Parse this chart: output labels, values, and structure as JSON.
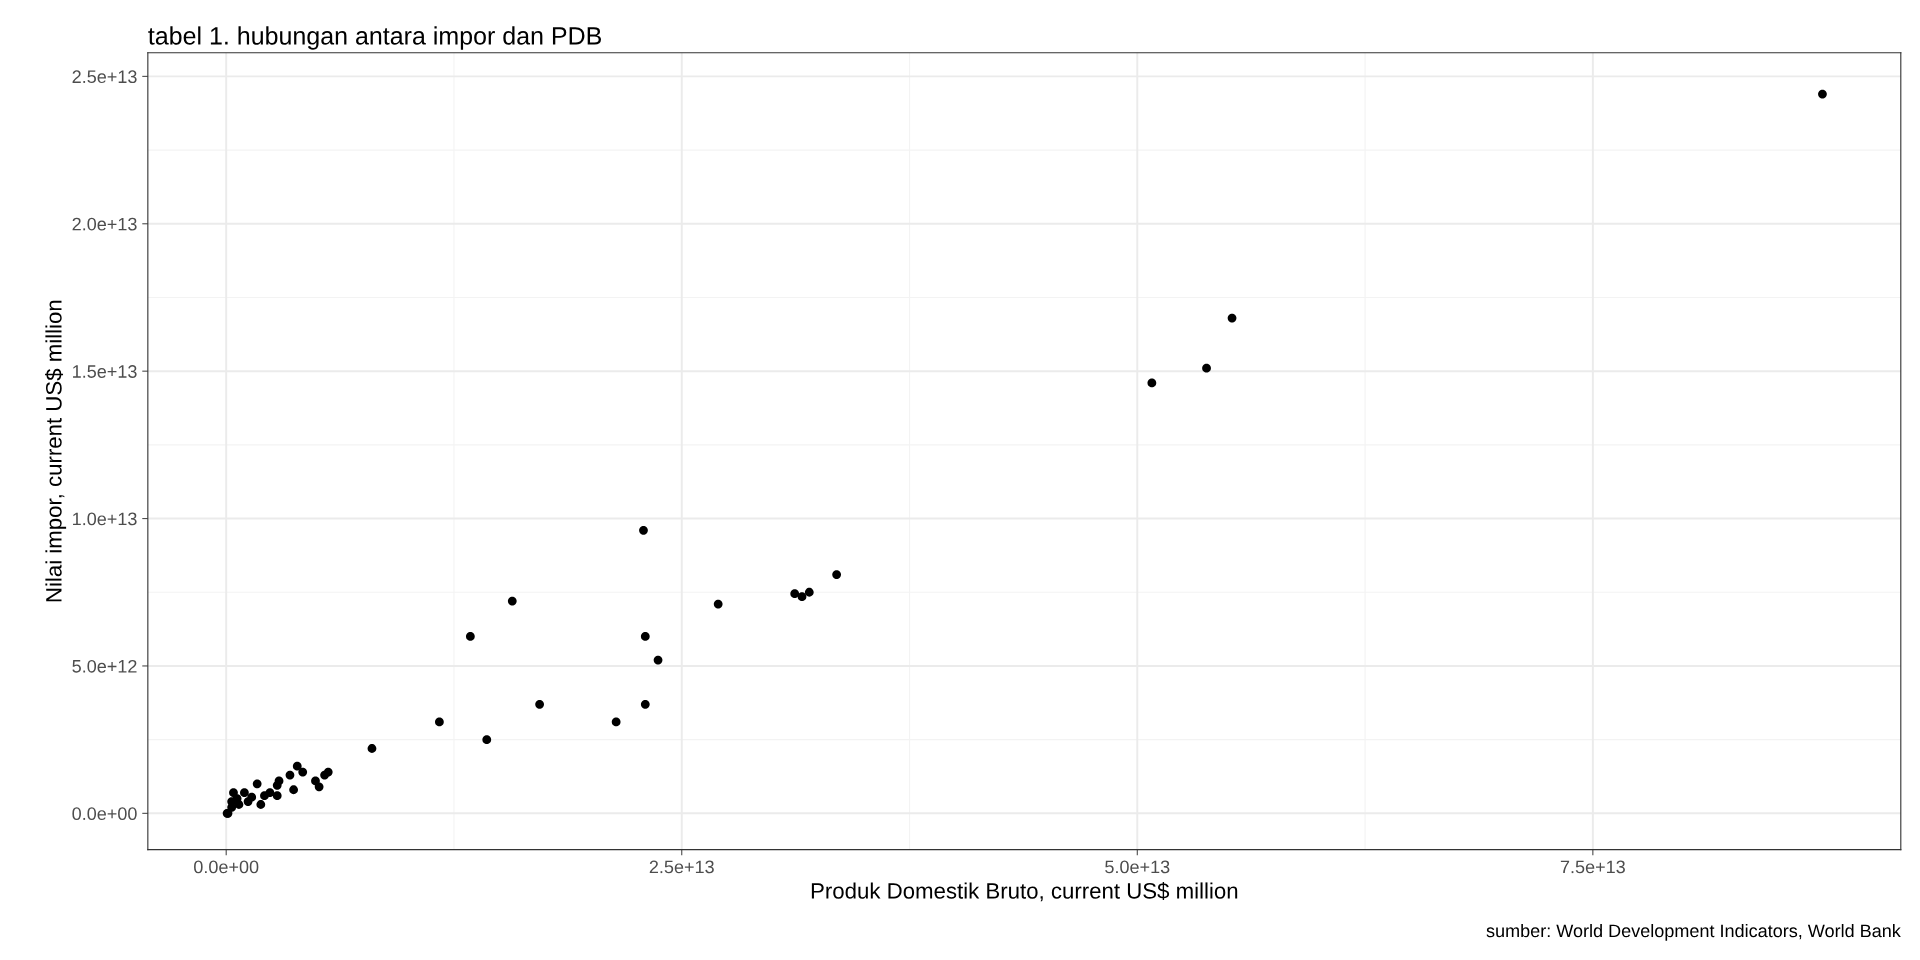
{
  "chart_data": {
    "type": "scatter",
    "title": "tabel 1. hubungan antara impor dan PDB",
    "xlabel": "Produk Domestik Bruto, current US$ million",
    "ylabel": "Nilai impor, current US$ million",
    "annotations": [
      "sumber: World Development Indicators, World Bank"
    ],
    "x": [
      87600000000000.0,
      55200000000000.0,
      53800000000000.0,
      50800000000000.0,
      33500000000000.0,
      31200000000000.0,
      31600000000000.0,
      32000000000000.0,
      27000000000000.0,
      22900000000000.0,
      23000000000000.0,
      23700000000000.0,
      23000000000000.0,
      21400000000000.0,
      17200000000000.0,
      15700000000000.0,
      13400000000000.0,
      14300000000000.0,
      11700000000000.0,
      8000000000000.0,
      5600000000000.0,
      5400000000000.0,
      4900000000000.0,
      5100000000000.0,
      3900000000000.0,
      4200000000000.0,
      3500000000000.0,
      3700000000000.0,
      2900000000000.0,
      2800000000000.0,
      2800000000000.0,
      1700000000000.0,
      2400000000000.0,
      1900000000000.0,
      400000000000.0,
      1000000000000.0,
      1400000000000.0,
      100000000000.0,
      300000000000.0,
      700000000000.0,
      1200000000000.0,
      2100000000000.0,
      300000000000.0,
      600000000000.0,
      50000000000.0
    ],
    "series": [
      {
        "color": "#000000",
        "values": [
          24400000000000.0,
          16800000000000.0,
          15100000000000.0,
          14600000000000.0,
          8100000000000.0,
          7450000000000.0,
          7350000000000.0,
          7500000000000.0,
          7100000000000.0,
          9600000000000.0,
          6000000000000.0,
          5200000000000.0,
          3700000000000.0,
          3100000000000.0,
          3700000000000.0,
          7200000000000.0,
          6000000000000.0,
          2500000000000.0,
          3100000000000.0,
          2200000000000.0,
          1400000000000.0,
          1300000000000.0,
          1100000000000.0,
          900000000000.0,
          1600000000000.0,
          1400000000000.0,
          1300000000000.0,
          800000000000.0,
          1100000000000.0,
          950000000000.0,
          600000000000.0,
          1000000000000.0,
          700000000000.0,
          300000000000.0,
          700000000000.0,
          700000000000.0,
          550000000000.0,
          0,
          200000000000.0,
          300000000000.0,
          400000000000.0,
          600000000000.0,
          400000000000.0,
          500000000000.0,
          0
        ]
      }
    ],
    "xlim": [
      -4300000000000.0,
      91900000000000.0
    ],
    "ylim": [
      -1230000000000.0,
      25800000000000.0
    ],
    "xticks": [
      {
        "value": 0,
        "label": "0.0e+00"
      },
      {
        "value": 25000000000000.0,
        "label": "2.5e+13"
      },
      {
        "value": 50000000000000.0,
        "label": "5.0e+13"
      },
      {
        "value": 75000000000000.0,
        "label": "7.5e+13"
      }
    ],
    "yticks": [
      {
        "value": 0,
        "label": "0.0e+00"
      },
      {
        "value": 5000000000000.0,
        "label": "5.0e+12"
      },
      {
        "value": 10000000000000.0,
        "label": "1.0e+13"
      },
      {
        "value": 15000000000000.0,
        "label": "1.5e+13"
      },
      {
        "value": 20000000000000.0,
        "label": "2.0e+13"
      },
      {
        "value": 25000000000000.0,
        "label": "2.5e+13"
      }
    ],
    "grid": true,
    "marker": "circle"
  }
}
